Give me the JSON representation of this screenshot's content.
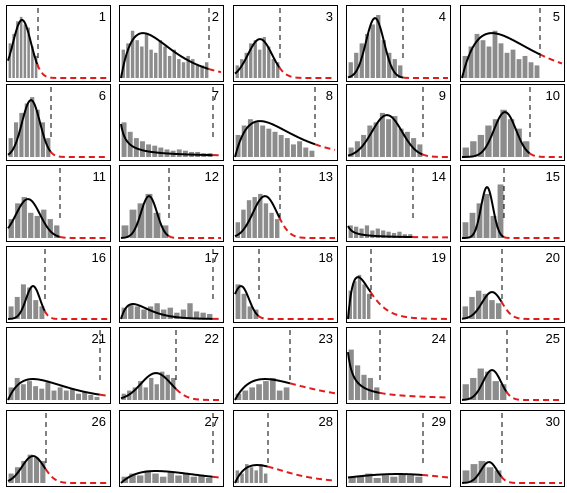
{
  "chart_data": {
    "type": "bar",
    "layout": "small-multiples",
    "grid_rows": 6,
    "grid_cols": 5,
    "title": "",
    "xlabel": "",
    "ylabel": "",
    "colors": {
      "bars": "#8c8c8c",
      "fit": "#000000",
      "extrapolation": "#e01b1b",
      "threshold": "#000000"
    },
    "panels": [
      {
        "label": "1",
        "threshold": 0.3,
        "bars": [
          0.55,
          0.7,
          0.9,
          0.97,
          0.85,
          0.8,
          0.5,
          0.35
        ],
        "curve": {
          "shape": "gauss",
          "mu": 0.14,
          "sigma": 0.09
        }
      },
      {
        "label": "2",
        "threshold": 0.88,
        "bars": [
          0.45,
          0.55,
          0.75,
          0.6,
          0.5,
          0.7,
          0.45,
          0.4,
          0.6,
          0.5,
          0.35,
          0.45,
          0.3,
          0.25,
          0.35,
          0.3,
          0.2,
          0.2,
          0.25
        ],
        "curve": {
          "shape": "skew",
          "peak": 0.22
        }
      },
      {
        "label": "3",
        "threshold": 0.45,
        "bars": [
          0.2,
          0.3,
          0.4,
          0.55,
          0.6,
          0.45,
          0.65,
          0.5,
          0.3,
          0.25
        ],
        "curve": {
          "shape": "gauss",
          "mu": 0.25,
          "sigma": 0.12
        }
      },
      {
        "label": "4",
        "threshold": 0.55,
        "bars": [
          0.25,
          0.4,
          0.55,
          0.7,
          0.85,
          1.0,
          0.6,
          0.4,
          0.3,
          0.2
        ],
        "curve": {
          "shape": "gauss",
          "mu": 0.27,
          "sigma": 0.09
        }
      },
      {
        "label": "5",
        "threshold": 0.78,
        "bars": [
          0.35,
          0.5,
          0.7,
          0.6,
          0.5,
          0.75,
          0.55,
          0.4,
          0.45,
          0.3,
          0.35,
          0.25,
          0.2
        ],
        "curve": {
          "shape": "skew",
          "peak": 0.3
        }
      },
      {
        "label": "6",
        "threshold": 0.43,
        "bars": [
          0.3,
          0.55,
          0.7,
          0.85,
          0.95,
          0.75,
          0.55,
          0.3
        ],
        "curve": {
          "shape": "gauss",
          "mu": 0.23,
          "sigma": 0.09
        }
      },
      {
        "label": "7",
        "threshold": 0.92,
        "bars": [
          0.55,
          0.4,
          0.3,
          0.25,
          0.2,
          0.18,
          0.15,
          0.12,
          0.1,
          0.12,
          0.1,
          0.08,
          0.08,
          0.06,
          0.06
        ],
        "curve": {
          "shape": "decay"
        }
      },
      {
        "label": "8",
        "threshold": 0.8,
        "bars": [
          0.35,
          0.5,
          0.6,
          0.55,
          0.5,
          0.45,
          0.4,
          0.35,
          0.3,
          0.2,
          0.25,
          0.15,
          0.1
        ],
        "curve": {
          "shape": "skew",
          "peak": 0.25
        }
      },
      {
        "label": "9",
        "threshold": 0.75,
        "bars": [
          0.15,
          0.25,
          0.35,
          0.5,
          0.55,
          0.7,
          0.6,
          0.65,
          0.45,
          0.4,
          0.3,
          0.2
        ],
        "curve": {
          "shape": "gauss",
          "mu": 0.39,
          "sigma": 0.15
        }
      },
      {
        "label": "10",
        "threshold": 0.68,
        "bars": [
          0.15,
          0.25,
          0.35,
          0.5,
          0.6,
          0.75,
          0.6,
          0.45,
          0.25
        ],
        "curve": {
          "shape": "gauss",
          "mu": 0.43,
          "sigma": 0.11
        }
      },
      {
        "label": "11",
        "threshold": 0.52,
        "bars": [
          0.3,
          0.55,
          0.65,
          0.4,
          0.35,
          0.45,
          0.3,
          0.2
        ],
        "curve": {
          "shape": "gauss",
          "mu": 0.2,
          "sigma": 0.12
        }
      },
      {
        "label": "12",
        "threshold": 0.48,
        "bars": [
          0.2,
          0.45,
          0.55,
          0.7,
          0.4,
          0.2
        ],
        "curve": {
          "shape": "gauss",
          "mu": 0.28,
          "sigma": 0.08
        }
      },
      {
        "label": "13",
        "threshold": 0.45,
        "bars": [
          0.25,
          0.45,
          0.6,
          0.65,
          0.7,
          0.55,
          0.4,
          0.3
        ],
        "curve": {
          "shape": "gauss",
          "mu": 0.3,
          "sigma": 0.12
        }
      },
      {
        "label": "14",
        "threshold": 0.65,
        "bars": [
          0.2,
          0.18,
          0.15,
          0.2,
          0.12,
          0.15,
          0.12,
          0.1,
          0.08,
          0.1,
          0.06,
          0.06
        ],
        "curve": {
          "shape": "decay"
        }
      },
      {
        "label": "15",
        "threshold": 0.42,
        "bars": [
          0.25,
          0.4,
          0.55,
          0.7,
          0.35,
          0.85
        ],
        "curve": {
          "shape": "gauss",
          "mu": 0.25,
          "sigma": 0.06
        }
      },
      {
        "label": "16",
        "threshold": 0.37,
        "bars": [
          0.2,
          0.35,
          0.55,
          0.5,
          0.3,
          0.2
        ],
        "curve": {
          "shape": "gauss",
          "mu": 0.25,
          "sigma": 0.07
        }
      },
      {
        "label": "17",
        "threshold": 0.92,
        "bars": [
          0.18,
          0.22,
          0.2,
          0.15,
          0.2,
          0.25,
          0.15,
          0.18,
          0.1,
          0.15,
          0.25,
          0.12,
          0.1,
          0.08
        ],
        "curve": {
          "shape": "skew",
          "peak": 0.12
        }
      },
      {
        "label": "18",
        "threshold": 0.24,
        "bars": [
          0.55,
          0.4,
          0.2,
          0.15
        ],
        "curve": {
          "shape": "gauss",
          "mu": 0.06,
          "sigma": 0.08
        }
      },
      {
        "label": "19",
        "threshold": 0.23,
        "bars": [
          0.45,
          0.6,
          0.7,
          0.55,
          0.4
        ],
        "curve": {
          "shape": "skew",
          "peak": 0.1
        }
      },
      {
        "label": "20",
        "threshold": 0.4,
        "bars": [
          0.2,
          0.35,
          0.45,
          0.4,
          0.3,
          0.25
        ],
        "curve": {
          "shape": "gauss",
          "mu": 0.3,
          "sigma": 0.1
        }
      },
      {
        "label": "21",
        "threshold": 0.92,
        "bars": [
          0.2,
          0.35,
          0.25,
          0.3,
          0.22,
          0.18,
          0.28,
          0.15,
          0.2,
          0.15,
          0.18,
          0.1,
          0.12,
          0.08,
          0.05
        ],
        "curve": {
          "shape": "skew",
          "peak": 0.25
        }
      },
      {
        "label": "22",
        "threshold": 0.55,
        "bars": [
          0.1,
          0.15,
          0.2,
          0.3,
          0.2,
          0.35,
          0.25,
          0.45,
          0.4,
          0.35
        ],
        "curve": {
          "shape": "gauss",
          "mu": 0.35,
          "sigma": 0.15
        }
      },
      {
        "label": "23",
        "threshold": 0.55,
        "bars": [
          0.1,
          0.15,
          0.2,
          0.25,
          0.3,
          0.35,
          0.15,
          0.2
        ],
        "curve": {
          "shape": "skew",
          "peak": 0.3
        }
      },
      {
        "label": "24",
        "threshold": 0.32,
        "bars": [
          0.8,
          0.55,
          0.4,
          0.35,
          0.2
        ],
        "curve": {
          "shape": "decay"
        }
      },
      {
        "label": "25",
        "threshold": 0.45,
        "bars": [
          0.25,
          0.35,
          0.5,
          0.45,
          0.3,
          0.25
        ],
        "curve": {
          "shape": "gauss",
          "mu": 0.3,
          "sigma": 0.09
        }
      },
      {
        "label": "26",
        "threshold": 0.38,
        "bars": [
          0.15,
          0.25,
          0.35,
          0.45,
          0.4,
          0.35
        ],
        "curve": {
          "shape": "gauss",
          "mu": 0.25,
          "sigma": 0.11
        }
      },
      {
        "label": "27",
        "threshold": 0.92,
        "bars": [
          0.1,
          0.15,
          0.12,
          0.2,
          0.15,
          0.1,
          0.18,
          0.12,
          0.15,
          0.1,
          0.12,
          0.08
        ],
        "curve": {
          "shape": "skew",
          "peak": 0.35
        }
      },
      {
        "label": "28",
        "threshold": 0.33,
        "bars": [
          0.2,
          0.15,
          0.3,
          0.25,
          0.2,
          0.3,
          0.15
        ],
        "curve": {
          "shape": "skew",
          "peak": 0.22
        }
      },
      {
        "label": "29",
        "threshold": 0.75,
        "bars": [
          0.1,
          0.12,
          0.15,
          0.08,
          0.12,
          0.1,
          0.15,
          0.12,
          0.1
        ],
        "curve": {
          "shape": "flat"
        }
      },
      {
        "label": "30",
        "threshold": 0.4,
        "bars": [
          0.2,
          0.3,
          0.35,
          0.25,
          0.2
        ],
        "curve": {
          "shape": "gauss",
          "mu": 0.27,
          "sigma": 0.08
        }
      }
    ]
  }
}
